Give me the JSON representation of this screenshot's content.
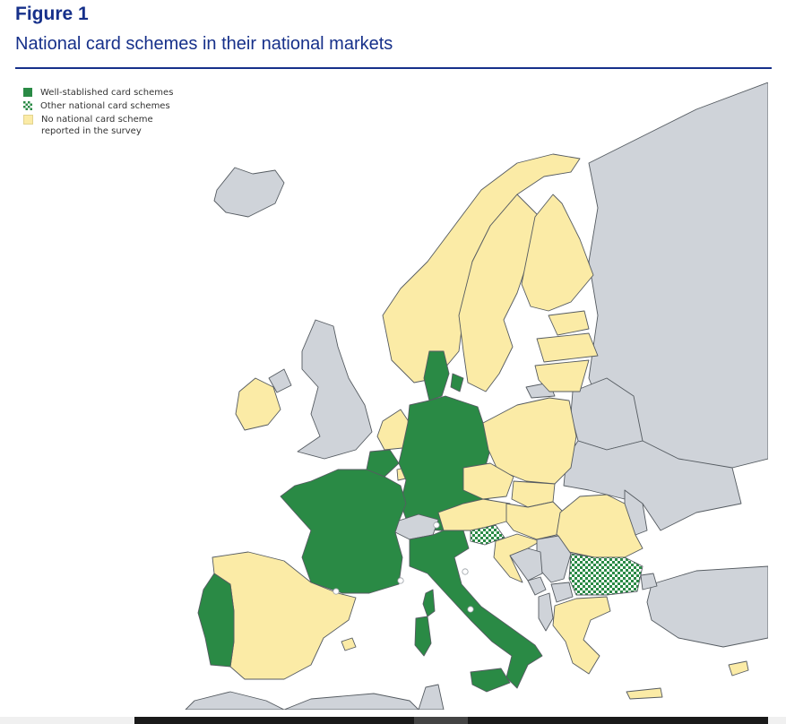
{
  "figure": {
    "label": "Figure 1",
    "title": "National card schemes in their national markets"
  },
  "legend": [
    {
      "label": "Well-stablished card schemes",
      "fill": "well-established"
    },
    {
      "label": "Other national card schemes",
      "fill": "other"
    },
    {
      "label": "No national card scheme reported in the survey",
      "fill": "none"
    }
  ],
  "colors": {
    "well_established": "#2a8a45",
    "other_scheme": "#2a8a45",
    "no_scheme": "#fbeba6",
    "non_member": "#cfd3d9",
    "sea": "#ffffff",
    "border": "#555b61",
    "title": "#16308a"
  },
  "map": {
    "categories": {
      "well-established": [
        "France",
        "Germany",
        "Italy",
        "Portugal",
        "Denmark",
        "Belgium"
      ],
      "other": [
        "Slovenia",
        "Bulgaria"
      ],
      "none": [
        "Spain",
        "Ireland",
        "Netherlands",
        "Norway",
        "Sweden",
        "Finland",
        "Estonia",
        "Latvia",
        "Lithuania",
        "Poland",
        "Czechia",
        "Slovakia",
        "Austria",
        "Hungary",
        "Romania",
        "Croatia",
        "Greece",
        "Cyprus",
        "Luxembourg"
      ],
      "non-member": [
        "United Kingdom",
        "Iceland",
        "Switzerland",
        "Belarus",
        "Ukraine",
        "Russia",
        "Turkey",
        "Serbia",
        "Bosnia",
        "Albania",
        "North Macedonia",
        "Montenegro",
        "Moldova",
        "Morocco",
        "Algeria",
        "Tunisia"
      ]
    }
  }
}
